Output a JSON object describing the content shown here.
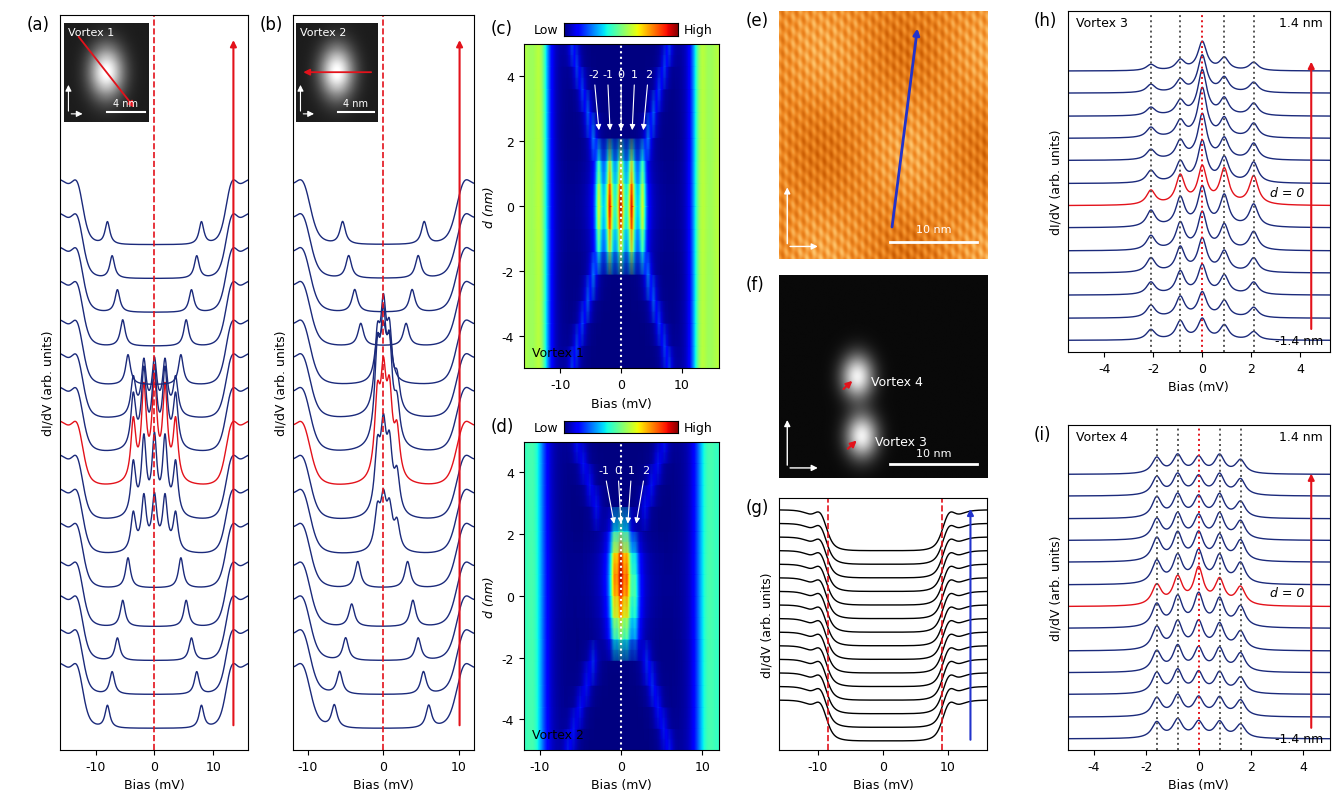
{
  "chart_data": [
    {
      "label": "(a)",
      "type": "spectra",
      "xlabel": "Bias (mV)",
      "ylabel": "dI/dV (arb. units)",
      "xlim": [
        -16,
        16
      ],
      "xticks": [
        -10,
        0,
        10
      ],
      "tick_labels": "x",
      "coherence_peaks": [
        -13,
        13
      ],
      "dashed_lines": [
        0
      ],
      "inset": {
        "title": "Vortex 1",
        "size_nm": [
          9,
          7
        ],
        "scale_bar": {
          "length": 4,
          "label": "4 nm"
        }
      },
      "curves": [
        {
          "d": -5,
          "color": "#1b2a7b",
          "peaks": [
            [
              -8,
              0.3
            ],
            [
              8,
              0.3
            ]
          ]
        },
        {
          "d": -4.3,
          "color": "#1b2a7b",
          "peaks": [
            [
              -7.2,
              0.3
            ],
            [
              7.2,
              0.3
            ]
          ]
        },
        {
          "d": -3.6,
          "color": "#1b2a7b",
          "peaks": [
            [
              -6.3,
              0.3
            ],
            [
              6.3,
              0.3
            ]
          ]
        },
        {
          "d": -2.9,
          "color": "#1b2a7b",
          "peaks": [
            [
              -5.4,
              0.35
            ],
            [
              5.4,
              0.35
            ]
          ]
        },
        {
          "d": -2.1,
          "color": "#1b2a7b",
          "peaks": [
            [
              -4.5,
              0.4
            ],
            [
              4.5,
              0.4
            ]
          ]
        },
        {
          "d": -1.4,
          "color": "#1b2a7b",
          "peaks": [
            [
              -3.6,
              0.5
            ],
            [
              -1.8,
              0.7
            ],
            [
              0,
              0.7
            ],
            [
              1.8,
              0.7
            ],
            [
              3.6,
              0.5
            ]
          ]
        },
        {
          "d": -0.7,
          "color": "#1b2a7b",
          "peaks": [
            [
              -3.6,
              0.7
            ],
            [
              -1.8,
              1.0
            ],
            [
              0,
              1.0
            ],
            [
              1.8,
              1.0
            ],
            [
              3.6,
              0.7
            ]
          ]
        },
        {
          "d": 0,
          "color": "#e3121b",
          "peaks": [
            [
              -3.6,
              0.8
            ],
            [
              -1.8,
              1.2
            ],
            [
              0,
              1.3
            ],
            [
              1.8,
              1.2
            ],
            [
              3.6,
              0.8
            ]
          ]
        },
        {
          "d": 0.7,
          "color": "#1b2a7b",
          "peaks": [
            [
              -3.6,
              0.7
            ],
            [
              -1.8,
              1.0
            ],
            [
              0,
              1.0
            ],
            [
              1.8,
              1.0
            ],
            [
              3.6,
              0.7
            ]
          ]
        },
        {
          "d": 1.4,
          "color": "#1b2a7b",
          "peaks": [
            [
              -3.6,
              0.5
            ],
            [
              -1.8,
              0.7
            ],
            [
              0,
              0.7
            ],
            [
              1.8,
              0.7
            ],
            [
              3.6,
              0.5
            ]
          ]
        },
        {
          "d": 2.1,
          "color": "#1b2a7b",
          "peaks": [
            [
              -4.5,
              0.4
            ],
            [
              4.5,
              0.4
            ]
          ]
        },
        {
          "d": 2.9,
          "color": "#1b2a7b",
          "peaks": [
            [
              -5.4,
              0.35
            ],
            [
              5.4,
              0.35
            ]
          ]
        },
        {
          "d": 3.6,
          "color": "#1b2a7b",
          "peaks": [
            [
              -6.3,
              0.3
            ],
            [
              6.3,
              0.3
            ]
          ]
        },
        {
          "d": 4.3,
          "color": "#1b2a7b",
          "peaks": [
            [
              -7.2,
              0.3
            ],
            [
              7.2,
              0.3
            ]
          ]
        },
        {
          "d": 5,
          "color": "#1b2a7b",
          "peaks": [
            [
              -8,
              0.3
            ],
            [
              8,
              0.3
            ]
          ]
        }
      ]
    },
    {
      "label": "(b)",
      "type": "spectra",
      "xlabel": "Bias (mV)",
      "ylabel": "dI/dV (arb. units)",
      "xlim": [
        -12,
        12
      ],
      "xticks": [
        -10,
        0,
        10
      ],
      "tick_labels": "x",
      "coherence_peaks": [
        -10.5,
        10.5
      ],
      "dashed_lines": [
        0
      ],
      "inset": {
        "title": "Vortex 2",
        "size_nm": [
          9,
          7
        ],
        "scale_bar": {
          "length": 4,
          "label": "4 nm"
        }
      },
      "curves": [
        {
          "d": -5,
          "color": "#1b2a7b",
          "peaks": [
            [
              -6.5,
              0.3
            ],
            [
              6,
              0.3
            ]
          ]
        },
        {
          "d": -4.3,
          "color": "#1b2a7b",
          "peaks": [
            [
              -5.8,
              0.3
            ],
            [
              5.3,
              0.3
            ]
          ]
        },
        {
          "d": -3.6,
          "color": "#1b2a7b",
          "peaks": [
            [
              -5,
              0.3
            ],
            [
              4.6,
              0.3
            ]
          ]
        },
        {
          "d": -2.9,
          "color": "#1b2a7b",
          "peaks": [
            [
              -4.2,
              0.3
            ],
            [
              3.9,
              0.35
            ]
          ]
        },
        {
          "d": -2.1,
          "color": "#1b2a7b",
          "peaks": [
            [
              -3.4,
              0.35
            ],
            [
              3.2,
              0.35
            ]
          ]
        },
        {
          "d": -1.4,
          "color": "#1b2a7b",
          "peaks": [
            [
              -0.8,
              0.5
            ],
            [
              0,
              0.6
            ],
            [
              0.8,
              0.5
            ],
            [
              1.8,
              0.35
            ]
          ]
        },
        {
          "d": -0.7,
          "color": "#1b2a7b",
          "peaks": [
            [
              -0.8,
              0.8
            ],
            [
              0,
              1.0
            ],
            [
              0.8,
              0.8
            ],
            [
              1.8,
              0.5
            ]
          ]
        },
        {
          "d": 0,
          "color": "#e3121b",
          "peaks": [
            [
              -0.8,
              1.0
            ],
            [
              0,
              1.2
            ],
            [
              0.8,
              1.0
            ],
            [
              1.8,
              0.6
            ]
          ]
        },
        {
          "d": 0.7,
          "color": "#1b2a7b",
          "peaks": [
            [
              -0.8,
              1.1
            ],
            [
              0,
              1.4
            ],
            [
              0.8,
              1.1
            ],
            [
              1.8,
              0.5
            ]
          ]
        },
        {
          "d": 1.4,
          "color": "#1b2a7b",
          "peaks": [
            [
              -0.8,
              0.9
            ],
            [
              0,
              1.2
            ],
            [
              0.8,
              0.9
            ],
            [
              1.8,
              0.4
            ]
          ]
        },
        {
          "d": 2.1,
          "color": "#1b2a7b",
          "peaks": [
            [
              -0.8,
              0.5
            ],
            [
              0,
              0.6
            ],
            [
              0.8,
              0.5
            ]
          ]
        },
        {
          "d": 2.9,
          "color": "#1b2a7b",
          "peaks": [
            [
              -3,
              0.3
            ],
            [
              3,
              0.3
            ]
          ]
        },
        {
          "d": 3.6,
          "color": "#1b2a7b",
          "peaks": [
            [
              -3.8,
              0.3
            ],
            [
              3.8,
              0.3
            ]
          ]
        },
        {
          "d": 4.3,
          "color": "#1b2a7b",
          "peaks": [
            [
              -4.6,
              0.3
            ],
            [
              4.6,
              0.3
            ]
          ]
        },
        {
          "d": 5,
          "color": "#1b2a7b",
          "peaks": [
            [
              -5.4,
              0.3
            ],
            [
              5.4,
              0.3
            ]
          ]
        }
      ]
    },
    {
      "label": "(c)",
      "type": "heatmap",
      "title": "Vortex 1",
      "colorbar_labels": [
        "Low",
        "High"
      ],
      "xlabel": "Bias (mV)",
      "ylabel": "d (nm)",
      "xlim": [
        -16,
        16
      ],
      "xticks": [
        -10,
        0,
        10
      ],
      "ylim": [
        -5,
        5
      ],
      "yticks": [
        -4,
        -2,
        0,
        2,
        4
      ],
      "dotted_lines": [
        0
      ],
      "level_labels": [
        {
          "label": "-2",
          "value": -3.6
        },
        {
          "label": "-1",
          "value": -1.8
        },
        {
          "label": "0",
          "value": 0
        },
        {
          "label": "1",
          "value": 1.8
        },
        {
          "label": "2",
          "value": 3.6
        }
      ]
    },
    {
      "label": "(d)",
      "type": "heatmap",
      "title": "Vortex 2",
      "colorbar_labels": [
        "Low",
        "High"
      ],
      "xlabel": "Bias (mV)",
      "ylabel": "d (nm)",
      "xlim": [
        -12,
        12
      ],
      "xticks": [
        -10,
        0,
        10
      ],
      "ylim": [
        -5,
        5
      ],
      "yticks": [
        -4,
        -2,
        0,
        2,
        4
      ],
      "dotted_lines": [
        0
      ],
      "level_labels": [
        {
          "label": "-1",
          "value": -0.8
        },
        {
          "label": "0",
          "value": 0
        },
        {
          "label": "1",
          "value": 0.8
        },
        {
          "label": "2",
          "value": 1.8
        }
      ]
    },
    {
      "label": "(e)",
      "type": "topography",
      "tick_labels": false,
      "size_nm": [
        24,
        17
      ],
      "line_cut_nm": [
        [
          13,
          2
        ],
        [
          16,
          16
        ]
      ],
      "color": "#2233cc",
      "scale_bar": {
        "length": 10,
        "label": "10 nm"
      }
    },
    {
      "label": "(f)",
      "type": "vortex_map",
      "tick_labels": false,
      "size_nm": [
        24,
        17
      ],
      "color": "#e3121b",
      "vortices": [
        {
          "name": "Vortex 4",
          "x": 9,
          "y": 8.5
        },
        {
          "name": "Vortex 3",
          "x": 9.5,
          "y": 3.5
        }
      ],
      "scale_bar": {
        "length": 10,
        "label": "10 nm"
      }
    },
    {
      "label": "(g)",
      "type": "spectra",
      "xlabel": "Bias (mV)",
      "ylabel": "dI/dV (arb. units)",
      "xlim": [
        -16,
        16
      ],
      "xticks": [
        -10,
        0,
        10
      ],
      "tick_labels": "x",
      "coherence_peaks": [
        -9.5,
        10
      ],
      "dashed_lines": [
        -8.5,
        9
      ],
      "n_curves": 15,
      "color": "#000000"
    },
    {
      "label": "(h)",
      "type": "spectra",
      "title": "Vortex 3",
      "xlabel": "Bias (mV)",
      "ylabel": "dI/dV (arb. units)",
      "xlim": [
        -5.5,
        5.2
      ],
      "xticks": [
        -4,
        -2,
        0,
        2,
        4
      ],
      "tick_labels": "x",
      "annotations": {
        "top": "1.4 nm",
        "bottom": "-1.4 nm",
        "center": "d = 0"
      },
      "levels": [
        -2.1,
        -0.9,
        0,
        0.9,
        2.1
      ],
      "curves": [
        {
          "d": -1.4,
          "color": "#1b2a7b",
          "amplitudes": [
            0.25,
            0.45,
            0.5,
            0.35,
            0.2
          ]
        },
        {
          "d": -1.17,
          "color": "#1b2a7b",
          "amplitudes": [
            0.3,
            0.5,
            0.6,
            0.4,
            0.25
          ]
        },
        {
          "d": -0.93,
          "color": "#1b2a7b",
          "amplitudes": [
            0.3,
            0.55,
            0.7,
            0.45,
            0.3
          ]
        },
        {
          "d": -0.7,
          "color": "#1b2a7b",
          "amplitudes": [
            0.35,
            0.6,
            0.8,
            0.5,
            0.35
          ]
        },
        {
          "d": -0.47,
          "color": "#1b2a7b",
          "amplitudes": [
            0.35,
            0.65,
            0.9,
            0.6,
            0.45
          ]
        },
        {
          "d": -0.23,
          "color": "#1b2a7b",
          "amplitudes": [
            0.4,
            0.7,
            0.95,
            0.75,
            0.55
          ]
        },
        {
          "d": 0,
          "color": "#e3121b",
          "amplitudes": [
            0.35,
            0.7,
            0.9,
            0.85,
            0.7
          ]
        },
        {
          "d": 0.23,
          "color": "#1b2a7b",
          "amplitudes": [
            0.3,
            0.5,
            1.0,
            0.6,
            0.5
          ]
        },
        {
          "d": 0.47,
          "color": "#1b2a7b",
          "amplitudes": [
            0.25,
            0.45,
            1.1,
            0.5,
            0.4
          ]
        },
        {
          "d": 0.7,
          "color": "#1b2a7b",
          "amplitudes": [
            0.25,
            0.4,
            1.2,
            0.45,
            0.35
          ]
        },
        {
          "d": 0.93,
          "color": "#1b2a7b",
          "amplitudes": [
            0.2,
            0.35,
            1.1,
            0.4,
            0.3
          ]
        },
        {
          "d": 1.17,
          "color": "#1b2a7b",
          "amplitudes": [
            0.2,
            0.3,
            0.9,
            0.35,
            0.25
          ]
        },
        {
          "d": 1.4,
          "color": "#1b2a7b",
          "amplitudes": [
            0.15,
            0.25,
            0.7,
            0.3,
            0.2
          ]
        }
      ]
    },
    {
      "label": "(i)",
      "type": "spectra",
      "title": "Vortex 4",
      "xlabel": "Bias (mV)",
      "ylabel": "dI/dV (arb. units)",
      "xlim": [
        -5,
        5
      ],
      "xticks": [
        -4,
        -2,
        0,
        2,
        4
      ],
      "tick_labels": "x",
      "annotations": {
        "top": "1.4 nm",
        "bottom": "-1.4 nm",
        "center": "d = 0"
      },
      "levels": [
        -1.6,
        -0.8,
        0,
        0.8,
        1.6
      ],
      "curves": [
        {
          "d": -1.4,
          "color": "#1b2a7b",
          "amplitudes": [
            0.35,
            0.4,
            0.35,
            0.35,
            0.3
          ]
        },
        {
          "d": -1.17,
          "color": "#1b2a7b",
          "amplitudes": [
            0.4,
            0.45,
            0.4,
            0.4,
            0.35
          ]
        },
        {
          "d": -0.93,
          "color": "#1b2a7b",
          "amplitudes": [
            0.45,
            0.5,
            0.45,
            0.45,
            0.35
          ]
        },
        {
          "d": -0.7,
          "color": "#1b2a7b",
          "amplitudes": [
            0.45,
            0.55,
            0.5,
            0.5,
            0.4
          ]
        },
        {
          "d": -0.47,
          "color": "#1b2a7b",
          "amplitudes": [
            0.5,
            0.6,
            0.6,
            0.55,
            0.4
          ]
        },
        {
          "d": -0.23,
          "color": "#1b2a7b",
          "amplitudes": [
            0.5,
            0.65,
            0.7,
            0.6,
            0.45
          ]
        },
        {
          "d": 0,
          "color": "#e3121b",
          "amplitudes": [
            0.45,
            0.6,
            0.8,
            0.55,
            0.4
          ]
        },
        {
          "d": 0.23,
          "color": "#1b2a7b",
          "amplitudes": [
            0.5,
            0.6,
            0.7,
            0.6,
            0.45
          ]
        },
        {
          "d": 0.47,
          "color": "#1b2a7b",
          "amplitudes": [
            0.5,
            0.6,
            0.6,
            0.55,
            0.45
          ]
        },
        {
          "d": 0.7,
          "color": "#1b2a7b",
          "amplitudes": [
            0.45,
            0.55,
            0.5,
            0.55,
            0.4
          ]
        },
        {
          "d": 0.93,
          "color": "#1b2a7b",
          "amplitudes": [
            0.45,
            0.5,
            0.45,
            0.5,
            0.35
          ]
        },
        {
          "d": 1.17,
          "color": "#1b2a7b",
          "amplitudes": [
            0.4,
            0.45,
            0.4,
            0.45,
            0.35
          ]
        },
        {
          "d": 1.4,
          "color": "#1b2a7b",
          "amplitudes": [
            0.35,
            0.4,
            0.35,
            0.4,
            0.3
          ]
        }
      ]
    }
  ]
}
